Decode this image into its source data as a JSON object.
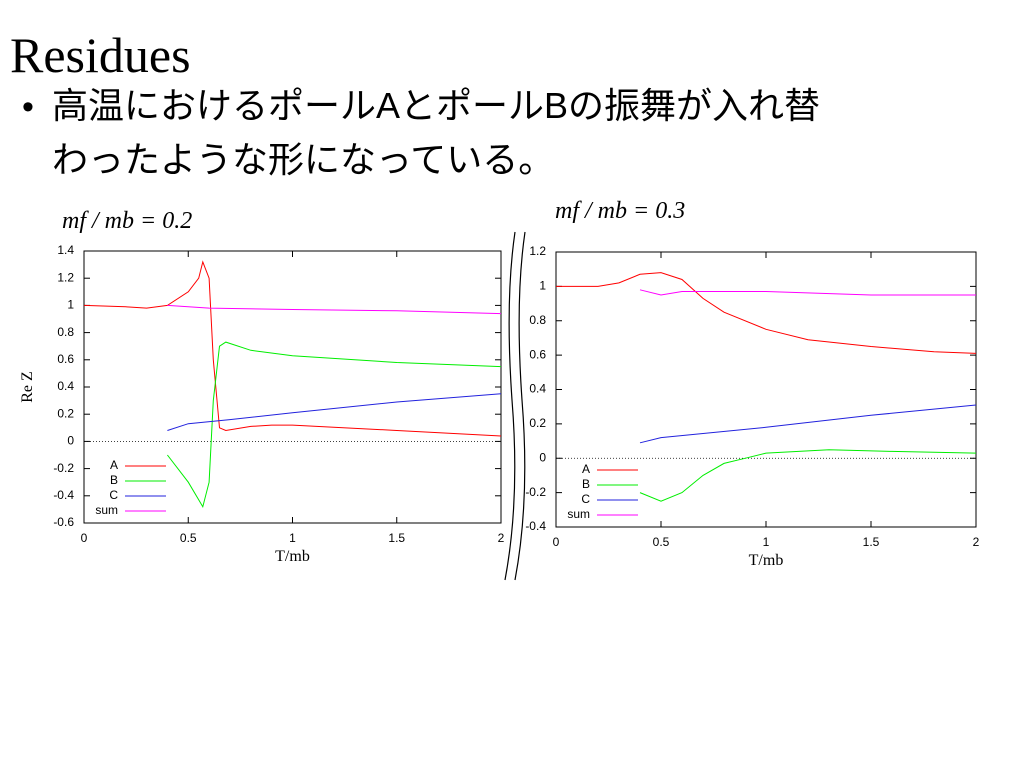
{
  "slide": {
    "title": "Residues",
    "bullet": "•",
    "lines": [
      "高温におけるポールAとポールBの振舞が入れ替",
      "わったような形になっている。"
    ]
  },
  "chart_data": [
    {
      "type": "line",
      "title": "mf / mb = 0.2",
      "xlabel": "T/mb",
      "ylabel": "Re Z",
      "xlim": [
        0,
        2
      ],
      "xticks": [
        0,
        0.5,
        1,
        1.5,
        2
      ],
      "ylim": [
        -0.6,
        1.4
      ],
      "yticks": [
        -0.6,
        -0.4,
        -0.2,
        0,
        0.2,
        0.4,
        0.6,
        0.8,
        1,
        1.2,
        1.4
      ],
      "zero_line": true,
      "legend": "lower left",
      "series": [
        {
          "name": "A",
          "color": "#ff0000",
          "x": [
            0,
            0.2,
            0.3,
            0.4,
            0.5,
            0.55,
            0.57,
            0.6,
            0.62,
            0.65,
            0.68,
            0.8,
            0.9,
            1.0,
            1.5,
            2.0
          ],
          "values": [
            1.0,
            0.99,
            0.98,
            1.0,
            1.1,
            1.2,
            1.32,
            1.2,
            0.6,
            0.1,
            0.08,
            0.11,
            0.12,
            0.12,
            0.08,
            0.04
          ]
        },
        {
          "name": "B",
          "color": "#00ee00",
          "x": [
            0.4,
            0.5,
            0.57,
            0.6,
            0.62,
            0.65,
            0.68,
            0.8,
            1.0,
            1.5,
            2.0
          ],
          "values": [
            -0.1,
            -0.3,
            -0.48,
            -0.3,
            0.3,
            0.7,
            0.73,
            0.67,
            0.63,
            0.58,
            0.55
          ]
        },
        {
          "name": "C",
          "color": "#2222dd",
          "x": [
            0.4,
            0.5,
            0.7,
            1.0,
            1.5,
            2.0
          ],
          "values": [
            0.08,
            0.13,
            0.16,
            0.21,
            0.29,
            0.35
          ]
        },
        {
          "name": "sum",
          "color": "#ff00ff",
          "x": [
            0.4,
            0.6,
            1.0,
            1.5,
            2.0
          ],
          "values": [
            1.0,
            0.98,
            0.97,
            0.96,
            0.94
          ]
        }
      ]
    },
    {
      "type": "line",
      "title": "mf / mb = 0.3",
      "xlabel": "T/mb",
      "xlim": [
        0,
        2
      ],
      "xticks": [
        0,
        0.5,
        1,
        1.5,
        2
      ],
      "ylim": [
        -0.4,
        1.2
      ],
      "yticks": [
        -0.4,
        -0.2,
        0,
        0.2,
        0.4,
        0.6,
        0.8,
        1,
        1.2
      ],
      "zero_line": true,
      "legend": "lower left",
      "series": [
        {
          "name": "A",
          "color": "#ff0000",
          "x": [
            0,
            0.2,
            0.3,
            0.4,
            0.5,
            0.6,
            0.7,
            0.8,
            1.0,
            1.2,
            1.5,
            1.8,
            2.0
          ],
          "values": [
            1.0,
            1.0,
            1.02,
            1.07,
            1.08,
            1.04,
            0.93,
            0.85,
            0.75,
            0.69,
            0.65,
            0.62,
            0.61
          ]
        },
        {
          "name": "B",
          "color": "#00ee00",
          "x": [
            0.4,
            0.5,
            0.6,
            0.7,
            0.8,
            0.9,
            1.0,
            1.3,
            1.6,
            2.0
          ],
          "values": [
            -0.2,
            -0.25,
            -0.2,
            -0.1,
            -0.03,
            0.0,
            0.03,
            0.05,
            0.04,
            0.03
          ]
        },
        {
          "name": "C",
          "color": "#2222dd",
          "x": [
            0.4,
            0.5,
            1.0,
            1.5,
            2.0
          ],
          "values": [
            0.09,
            0.12,
            0.18,
            0.25,
            0.31
          ]
        },
        {
          "name": "sum",
          "color": "#ff00ff",
          "x": [
            0.4,
            0.5,
            0.6,
            1.0,
            1.5,
            2.0
          ],
          "values": [
            0.98,
            0.95,
            0.97,
            0.97,
            0.95,
            0.95
          ]
        }
      ]
    }
  ]
}
